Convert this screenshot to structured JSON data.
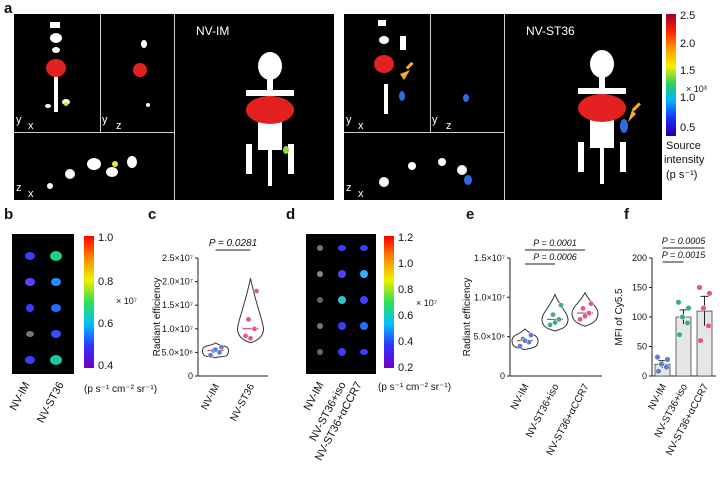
{
  "panel_labels": {
    "a": "a",
    "b": "b",
    "c": "c",
    "d": "d",
    "e": "e",
    "f": "f"
  },
  "panel_a": {
    "left_group": "NV-IM",
    "right_group": "NV-ST36",
    "axes": {
      "y": "y",
      "x": "x",
      "z": "z"
    },
    "colorbar": {
      "ticks": [
        "2.5",
        "2.0",
        "1.5",
        "1.0",
        "0.5"
      ],
      "multiplier": "× 10³",
      "title_line1": "Source",
      "title_line2": "intensity",
      "title_line3": "(p s⁻¹)"
    }
  },
  "panel_b": {
    "groups": [
      "NV-IM",
      "NV-ST36"
    ],
    "colorbar": {
      "ticks": [
        "1.0",
        "0.8",
        "0.6",
        "0.4"
      ],
      "multiplier": "× 10⁷",
      "unit": "(p s⁻¹ cm⁻² sr⁻¹)"
    }
  },
  "panel_d": {
    "groups": [
      "NV-IM",
      "NV-ST36+iso",
      "NV-ST36+αCCR7"
    ],
    "colorbar": {
      "ticks": [
        "1.2",
        "1.0",
        "0.8",
        "0.6",
        "0.4",
        "0.2"
      ],
      "multiplier": "× 10⁷",
      "unit": "(p s⁻¹ cm⁻² sr⁻¹)"
    }
  },
  "chart_data": [
    {
      "panel": "c",
      "type": "violin",
      "ylabel": "Radiant efficiency",
      "ylim": [
        0,
        25000000
      ],
      "yticks": [
        "0",
        "5.0×10⁶",
        "1.0×10⁷",
        "1.5×10⁷",
        "2.0×10⁷",
        "2.5×10⁷"
      ],
      "categories": [
        "NV-IM",
        "NV-ST36"
      ],
      "series": [
        {
          "name": "NV-IM",
          "points": [
            4400000,
            5000000,
            5400000,
            6100000,
            5600000
          ],
          "color": "#5b7fd0"
        },
        {
          "name": "NV-ST36",
          "points": [
            8500000,
            10000000,
            12000000,
            18000000,
            8000000
          ],
          "color": "#e0568d"
        }
      ],
      "annotations": [
        "P = 0.0281"
      ]
    },
    {
      "panel": "e",
      "type": "violin",
      "ylabel": "Radiant efficiency",
      "ylim": [
        0,
        15000000
      ],
      "yticks": [
        "0",
        "5.0×10⁶",
        "1.0×10⁷",
        "1.5×10⁷"
      ],
      "categories": [
        "NV-IM",
        "NV-ST36+iso",
        "NV-ST36+αCCR7"
      ],
      "series": [
        {
          "name": "NV-IM",
          "points": [
            3800000,
            4300000,
            4700000,
            5200000,
            4500000
          ],
          "color": "#5b7fd0"
        },
        {
          "name": "NV-ST36+iso",
          "points": [
            6500000,
            7200000,
            7800000,
            9000000,
            6800000
          ],
          "color": "#3ab07a"
        },
        {
          "name": "NV-ST36+αCCR7",
          "points": [
            7200000,
            8000000,
            8600000,
            9200000,
            7600000
          ],
          "color": "#e0568d"
        }
      ],
      "annotations": [
        "P = 0.0001",
        "P = 0.0006"
      ]
    },
    {
      "panel": "f",
      "type": "bar",
      "ylabel": "MFI of Cy5.5",
      "ylim": [
        0,
        200
      ],
      "yticks": [
        "0",
        "50",
        "100",
        "150",
        "200"
      ],
      "categories": [
        "NV-IM",
        "NV-ST36+iso",
        "NV-ST36+αCCR7"
      ],
      "values": [
        20,
        100,
        110
      ],
      "errors": [
        6,
        12,
        25
      ],
      "points": [
        [
          8,
          15,
          20,
          28,
          32
        ],
        [
          70,
          90,
          100,
          115,
          125
        ],
        [
          60,
          85,
          115,
          140,
          150
        ]
      ],
      "point_colors": [
        "#5b7fd0",
        "#3ab07a",
        "#e0568d"
      ],
      "annotations": [
        "P = 0.0005",
        "P = 0.0015"
      ]
    }
  ]
}
